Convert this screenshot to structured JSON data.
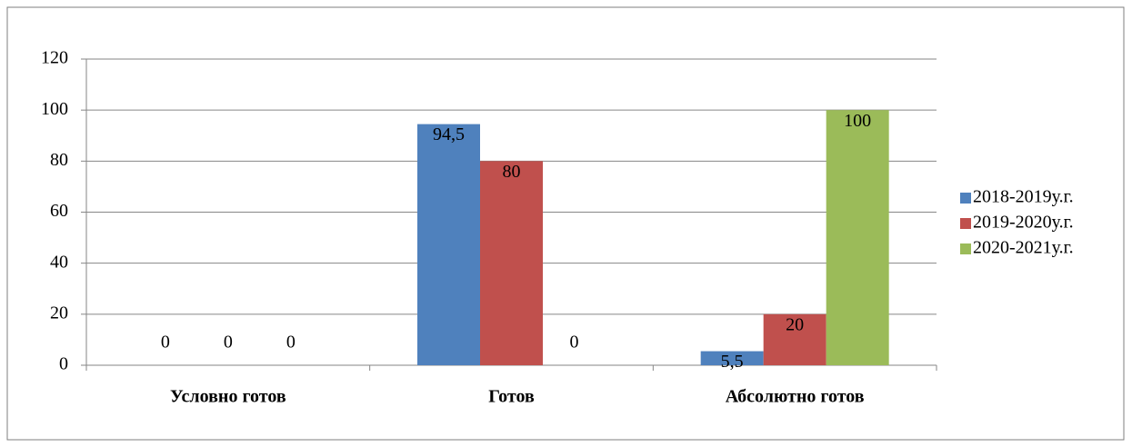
{
  "chart_data": {
    "type": "bar",
    "categories": [
      "Условно готов",
      "Готов",
      "Абсолютно готов"
    ],
    "series": [
      {
        "name": "2018-2019у.г.",
        "color": "#4f81bd",
        "values": [
          0,
          94.5,
          5.5
        ],
        "value_labels": [
          "0",
          "94,5",
          "5,5"
        ]
      },
      {
        "name": "2019-2020у.г.",
        "color": "#c0504d",
        "values": [
          0,
          80,
          20
        ]
      },
      {
        "name": "2020-2021у.г.",
        "color": "#9bbb59",
        "values": [
          0,
          0,
          100
        ]
      }
    ],
    "ylim": [
      0,
      120
    ],
    "yticks": [
      0,
      20,
      40,
      60,
      80,
      100,
      120
    ],
    "grid": true,
    "legend": "right"
  }
}
